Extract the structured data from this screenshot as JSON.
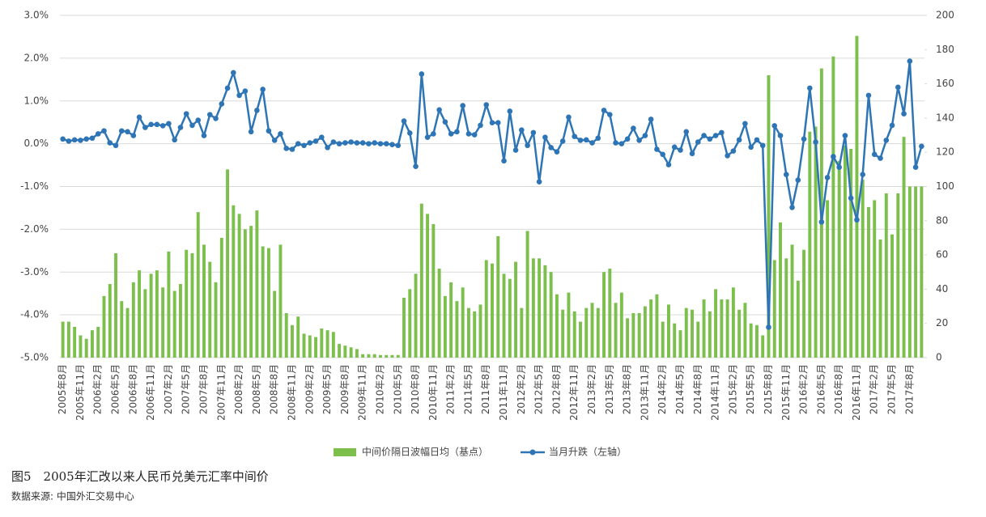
{
  "chart_data": {
    "type": "combo",
    "categories": [
      "2005年8月",
      null,
      null,
      "2005年11月",
      null,
      null,
      "2006年2月",
      null,
      null,
      "2006年5月",
      null,
      null,
      "2006年8月",
      null,
      null,
      "2006年11月",
      null,
      null,
      "2007年2月",
      null,
      null,
      "2007年5月",
      null,
      null,
      "2007年8月",
      null,
      null,
      "2007年11月",
      null,
      null,
      "2008年2月",
      null,
      null,
      "2008年5月",
      null,
      null,
      "2008年8月",
      null,
      null,
      "2008年11月",
      null,
      null,
      "2009年2月",
      null,
      null,
      "2009年5月",
      null,
      null,
      "2009年8月",
      null,
      null,
      "2009年11月",
      null,
      null,
      "2010年2月",
      null,
      null,
      "2010年5月",
      null,
      null,
      "2010年8月",
      null,
      null,
      "2010年11月",
      null,
      null,
      "2011年2月",
      null,
      null,
      "2011年5月",
      null,
      null,
      "2011年8月",
      null,
      null,
      "2011年11月",
      null,
      null,
      "2012年2月",
      null,
      null,
      "2012年5月",
      null,
      null,
      "2012年8月",
      null,
      null,
      "2012年11月",
      null,
      null,
      "2013年2月",
      null,
      null,
      "2013年5月",
      null,
      null,
      "2013年8月",
      null,
      null,
      "2013年11月",
      null,
      null,
      "2014年2月",
      null,
      null,
      "2014年5月",
      null,
      null,
      "2014年8月",
      null,
      null,
      "2014年11月",
      null,
      null,
      "2015年2月",
      null,
      null,
      "2015年5月",
      null,
      null,
      "2015年8月",
      null,
      null,
      "2015年11月",
      null,
      null,
      "2016年2月",
      null,
      null,
      "2016年5月",
      null,
      null,
      "2016年8月",
      null,
      null,
      "2016年11月",
      null,
      null,
      "2017年2月",
      null,
      null,
      "2017年5月",
      null,
      null,
      "2017年8月",
      null,
      null
    ],
    "series": [
      {
        "name": "中间价隔日波幅日均（基点）",
        "type": "bar",
        "axis": "y2",
        "color": "#7cbf4c",
        "values": [
          21,
          21,
          18,
          13,
          11,
          16,
          18,
          36,
          43,
          61,
          33,
          29,
          44,
          51,
          40,
          49,
          51,
          41,
          62,
          39,
          43,
          63,
          61,
          85,
          66,
          56,
          44,
          70,
          110,
          89,
          84,
          75,
          77,
          86,
          65,
          64,
          39,
          66,
          26,
          19,
          24,
          14,
          13,
          12,
          17,
          16,
          15,
          8,
          7,
          6,
          5,
          2,
          2,
          2,
          1.5,
          1.5,
          1.5,
          1.5,
          35,
          40,
          49,
          90,
          84,
          78,
          52,
          36,
          44,
          33,
          41,
          29,
          27,
          31,
          57,
          55,
          71,
          49,
          46,
          56,
          29,
          74,
          58,
          58,
          54,
          50,
          37,
          28,
          38,
          27,
          21,
          29,
          32,
          29,
          50,
          52,
          32,
          38,
          23,
          26,
          26,
          30,
          34,
          37,
          21,
          31,
          20,
          16,
          29,
          28,
          21,
          34,
          27,
          40,
          34,
          34,
          41,
          28,
          32,
          20,
          19,
          13,
          165,
          57,
          79,
          58,
          66,
          45,
          63,
          132,
          135,
          169,
          92,
          176,
          115,
          124,
          122,
          188,
          104,
          88,
          92,
          69,
          96,
          72,
          96,
          129,
          100,
          100,
          100
        ]
      },
      {
        "name": "当月升跌（左轴）",
        "type": "line",
        "axis": "y",
        "color": "#2e75b6",
        "values": [
          0.11,
          0.06,
          0.09,
          0.08,
          0.11,
          0.13,
          0.23,
          0.3,
          0.02,
          -0.04,
          0.3,
          0.28,
          0.19,
          0.62,
          0.38,
          0.45,
          0.45,
          0.42,
          0.47,
          0.09,
          0.38,
          0.7,
          0.43,
          0.55,
          0.19,
          0.68,
          0.59,
          0.93,
          1.3,
          1.66,
          1.13,
          1.23,
          0.28,
          0.78,
          1.27,
          0.3,
          0.08,
          0.23,
          -0.11,
          -0.13,
          0.0,
          -0.04,
          0.02,
          0.06,
          0.15,
          -0.09,
          0.04,
          0.0,
          0.02,
          0.04,
          0.02,
          0.02,
          0.0,
          0.02,
          0.0,
          0.0,
          -0.02,
          -0.04,
          0.53,
          0.25,
          -0.53,
          1.63,
          0.15,
          0.23,
          0.79,
          0.51,
          0.23,
          0.28,
          0.89,
          0.23,
          0.21,
          0.43,
          0.91,
          0.49,
          0.49,
          -0.4,
          0.76,
          -0.15,
          0.32,
          -0.04,
          0.26,
          -0.89,
          0.15,
          -0.09,
          -0.19,
          0.06,
          0.62,
          0.17,
          0.08,
          0.09,
          0.02,
          0.13,
          0.78,
          0.68,
          0.02,
          0.0,
          0.11,
          0.36,
          0.08,
          0.19,
          0.57,
          -0.13,
          -0.25,
          -0.49,
          -0.08,
          -0.15,
          0.28,
          -0.23,
          0.04,
          0.19,
          0.11,
          0.19,
          0.26,
          -0.28,
          -0.17,
          0.09,
          0.47,
          -0.08,
          0.09,
          -0.04,
          -4.29,
          0.42,
          0.19,
          -0.72,
          -1.49,
          -0.85,
          0.11,
          1.3,
          0.04,
          -1.83,
          -0.79,
          -0.3,
          -0.55,
          0.19,
          -1.27,
          -1.78,
          -0.72,
          1.13,
          -0.25,
          -0.34,
          0.08,
          0.43,
          1.32,
          0.7,
          1.93,
          -0.55,
          -0.06
        ]
      }
    ],
    "ylim": [
      -5,
      3
    ],
    "yticks": [
      {
        "value": -5,
        "label": "-5.0%"
      },
      {
        "value": -4,
        "label": "-4.0%"
      },
      {
        "value": -3,
        "label": "-3.0%"
      },
      {
        "value": -2,
        "label": "-2.0%"
      },
      {
        "value": -1,
        "label": "-1.0%"
      },
      {
        "value": 0,
        "label": "0.0%"
      },
      {
        "value": 1,
        "label": "1.0%"
      },
      {
        "value": 2,
        "label": "2.0%"
      },
      {
        "value": 3,
        "label": "3.0%"
      }
    ],
    "y2lim": [
      0,
      200
    ],
    "y2ticks": [
      0,
      20,
      40,
      60,
      80,
      100,
      120,
      140,
      160,
      180,
      200
    ],
    "grid": true,
    "legend": "bottom",
    "caption": "图5　2005年汇改以来人民币兑美元汇率中间价",
    "source": "数据来源: 中国外汇交易中心"
  }
}
